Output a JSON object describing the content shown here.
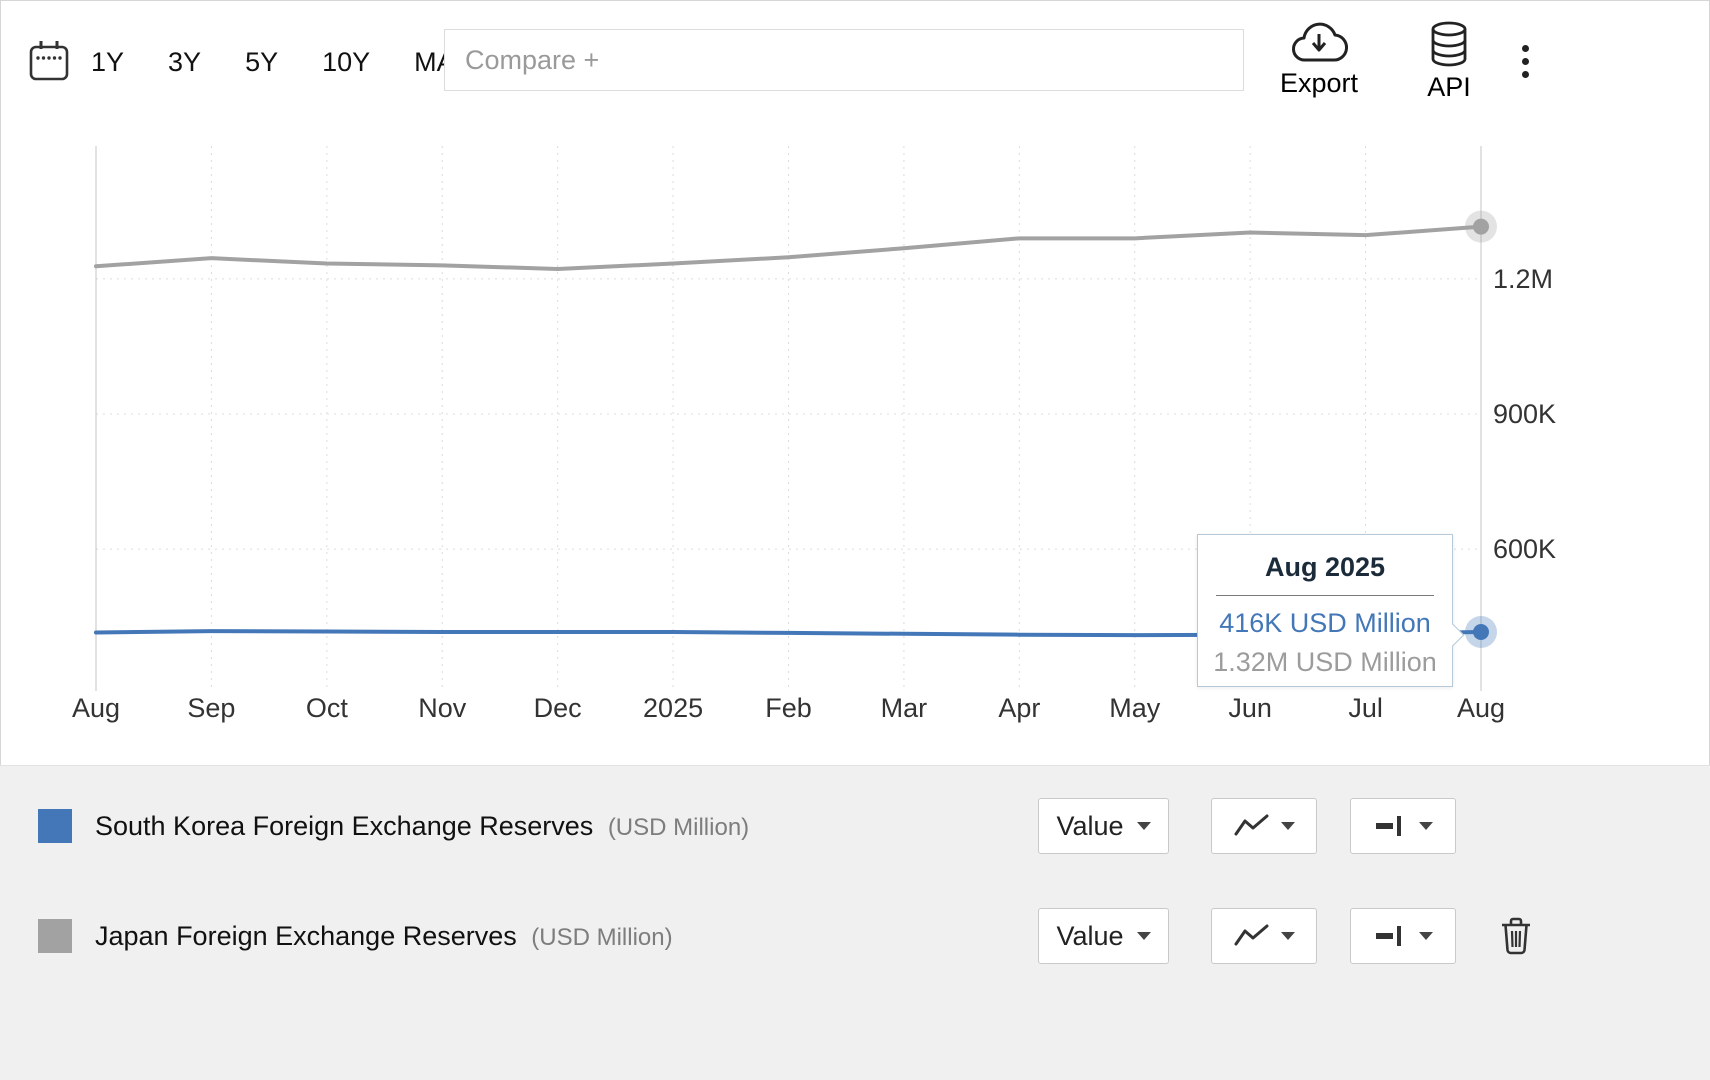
{
  "toolbar": {
    "ranges": [
      "1Y",
      "3Y",
      "5Y",
      "10Y",
      "MAX"
    ],
    "compare_placeholder": "Compare +",
    "export_label": "Export",
    "api_label": "API"
  },
  "chart_data": {
    "type": "line",
    "x": [
      "Aug",
      "Sep",
      "Oct",
      "Nov",
      "Dec",
      "2025",
      "Feb",
      "Mar",
      "Apr",
      "May",
      "Jun",
      "Jul",
      "Aug"
    ],
    "series": [
      {
        "name": "South Korea Foreign Exchange Reserves",
        "unit": "USD Million",
        "color": "#4377b8",
        "values": [
          415000,
          418000,
          417000,
          416000,
          416000,
          416000,
          414000,
          412000,
          410000,
          409000,
          410000,
          412000,
          416000
        ]
      },
      {
        "name": "Japan Foreign Exchange Reserves",
        "unit": "USD Million",
        "color": "#a2a2a2",
        "values": [
          1228000,
          1246000,
          1234000,
          1230000,
          1222000,
          1234000,
          1248000,
          1268000,
          1290000,
          1290000,
          1303000,
          1297000,
          1316000
        ]
      }
    ],
    "ylim": [
      285000,
      1495000
    ],
    "yticks": [
      {
        "label": "1.2M",
        "value": 1200000
      },
      {
        "label": "900K",
        "value": 900000
      },
      {
        "label": "600K",
        "value": 600000
      }
    ],
    "grid": true,
    "legend_position": "bottom"
  },
  "tooltip": {
    "title": "Aug 2025",
    "rows": [
      {
        "text": "416K USD Million",
        "color": "#4377b8"
      },
      {
        "text": "1.32M USD Million",
        "color": "#9c9c9c"
      }
    ]
  },
  "legend": {
    "items": [
      {
        "label": "South Korea Foreign Exchange Reserves",
        "unit_label": "(USD Million)",
        "color": "#4377b8",
        "value_button": "Value"
      },
      {
        "label": "Japan Foreign Exchange Reserves",
        "unit_label": "(USD Million)",
        "color": "#a2a2a2",
        "value_button": "Value"
      }
    ]
  }
}
